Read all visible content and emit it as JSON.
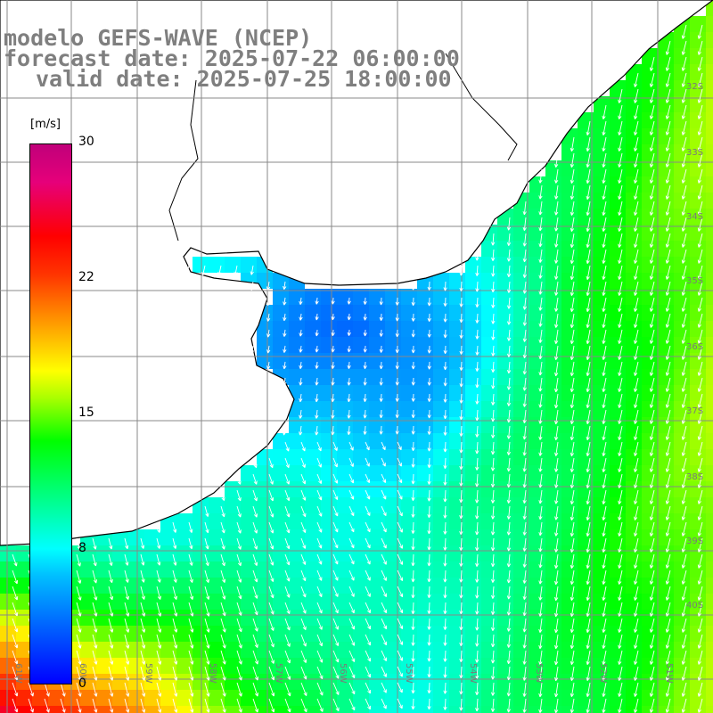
{
  "header": {
    "line1": "modelo GEFS-WAVE (NCEP)",
    "line2": "forecast date: 2025-07-22 06:00:00",
    "line3": "valid date: 2025-07-25 18:00:00"
  },
  "colorbar": {
    "unit": "[m/s]",
    "min": 0,
    "max": 30,
    "ticks": [
      "30",
      "22",
      "15",
      "8",
      "0"
    ],
    "colors": [
      "#0000ff",
      "#0066ff",
      "#00bfff",
      "#00ffff",
      "#00ff99",
      "#00ff00",
      "#aaff00",
      "#ffff00",
      "#ff9900",
      "#ff3300",
      "#ff0000",
      "#e6007a",
      "#c0007a"
    ]
  },
  "map": {
    "lon_labels": [
      "61W",
      "60W",
      "59W",
      "58W",
      "57W",
      "56W",
      "55W",
      "54W",
      "53W",
      "52W",
      "51W"
    ],
    "lat_labels": [
      "32S",
      "33S",
      "34S",
      "35S",
      "36S",
      "37S",
      "38S",
      "39S",
      "40S"
    ],
    "variable": "wind speed",
    "land_color": "#ffffff",
    "coast_color": "#000000",
    "grid_color": "#888888",
    "arrow_color": "#ffffff"
  }
}
